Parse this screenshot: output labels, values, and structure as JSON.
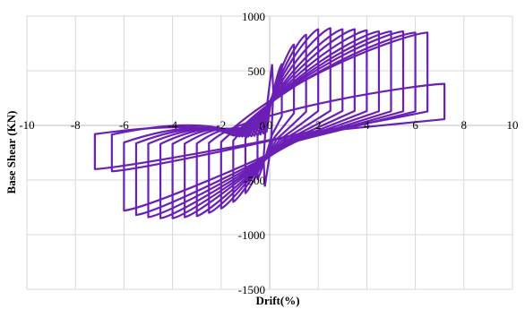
{
  "chart_data": {
    "type": "line",
    "title": "",
    "xlabel": "Drift(%)",
    "ylabel": "Base Shear (KN)",
    "xlim": [
      -10,
      10
    ],
    "ylim": [
      -1500,
      1000
    ],
    "x_ticks": [
      -10,
      -8,
      -6,
      -4,
      -2,
      0,
      2,
      4,
      6,
      8,
      10
    ],
    "x_tick_labels": [
      "-10",
      "-8",
      "-6",
      "-4",
      "-2",
      "0",
      "2",
      "4",
      "6",
      "8",
      "10"
    ],
    "y_ticks": [
      -1500,
      -1000,
      -500,
      0,
      500,
      1000
    ],
    "y_tick_labels": [
      "-1500",
      "-1000",
      "-500",
      "0",
      "500",
      "1000"
    ],
    "grid": true,
    "legend": false,
    "series": [
      {
        "color": "#6a1fb5",
        "cycles": [
          {
            "drift": 0.5,
            "pos_peak": 560,
            "neg_peak": -490
          },
          {
            "drift": 1.0,
            "pos_peak": 740,
            "neg_peak": -620
          },
          {
            "drift": 1.5,
            "pos_peak": 830,
            "neg_peak": -700
          },
          {
            "drift": 2.0,
            "pos_peak": 880,
            "neg_peak": -760
          },
          {
            "drift": 2.5,
            "pos_peak": 890,
            "neg_peak": -800
          },
          {
            "drift": 3.0,
            "pos_peak": 880,
            "neg_peak": -830
          },
          {
            "drift": 3.5,
            "pos_peak": 880,
            "neg_peak": -840
          },
          {
            "drift": 4.0,
            "pos_peak": 870,
            "neg_peak": -850
          },
          {
            "drift": 4.5,
            "pos_peak": 860,
            "neg_peak": -850
          },
          {
            "drift": 5.0,
            "pos_peak": 860,
            "neg_peak": -840
          },
          {
            "drift": 5.5,
            "pos_peak": 860,
            "neg_peak": -820
          },
          {
            "drift": 6.0,
            "pos_peak": 850,
            "neg_peak": -780
          },
          {
            "drift": 6.5,
            "pos_peak": 850,
            "neg_peak": -420
          },
          {
            "drift": 7.2,
            "pos_peak": 380,
            "neg_peak": -400
          }
        ]
      }
    ]
  }
}
